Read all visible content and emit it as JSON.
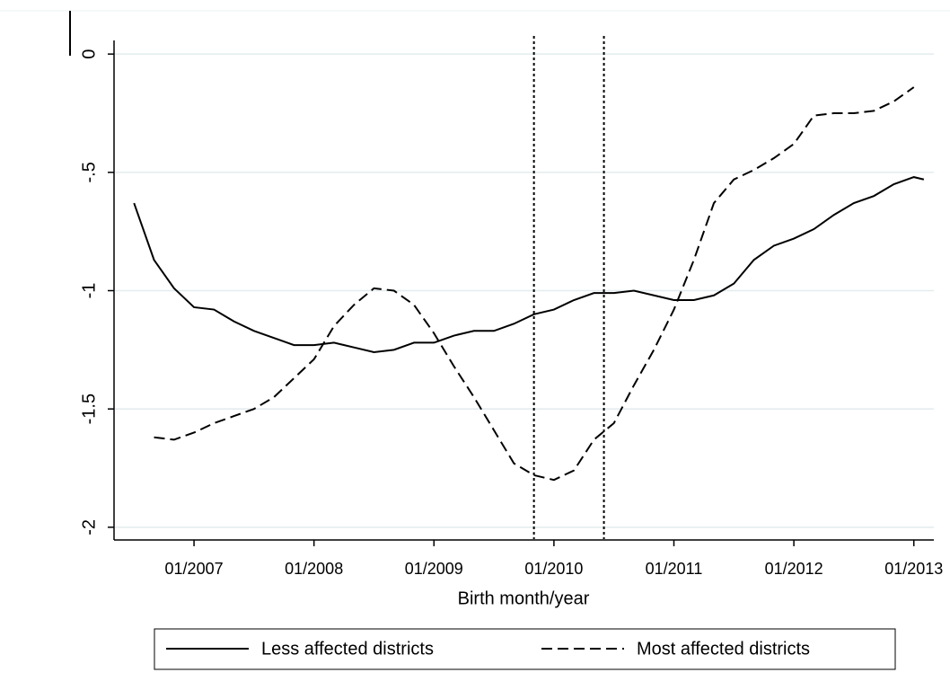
{
  "chart_data": {
    "type": "line",
    "x_label": "Birth month/year",
    "xlim": [
      "05/2006",
      "03/2013"
    ],
    "xticks": [
      "01/2007",
      "01/2008",
      "01/2009",
      "01/2010",
      "01/2011",
      "01/2012",
      "01/2013"
    ],
    "ylim": [
      -2.05,
      0.05
    ],
    "yticks": [
      0,
      {
        "value": -0.5,
        "label": "-.5"
      },
      -1,
      -1.5,
      -2
    ],
    "grid": true,
    "reference_lines": [
      "11/2009",
      "06/2010"
    ],
    "legend_position": "bottom",
    "series": [
      {
        "name": "Less affected districts",
        "color": "#000000",
        "dash": "solid",
        "x": [
          "07/2006",
          "09/2006",
          "11/2006",
          "01/2007",
          "03/2007",
          "05/2007",
          "07/2007",
          "09/2007",
          "11/2007",
          "01/2008",
          "03/2008",
          "05/2008",
          "07/2008",
          "09/2008",
          "11/2008",
          "01/2009",
          "03/2009",
          "05/2009",
          "07/2009",
          "09/2009",
          "11/2009",
          "01/2010",
          "03/2010",
          "05/2010",
          "07/2010",
          "09/2010",
          "11/2010",
          "01/2011",
          "03/2011",
          "05/2011",
          "07/2011",
          "09/2011",
          "11/2011",
          "01/2012",
          "03/2012",
          "05/2012",
          "07/2012",
          "09/2012",
          "11/2012",
          "01/2013",
          "02/2013"
        ],
        "values": [
          -0.63,
          -0.87,
          -0.99,
          -1.07,
          -1.08,
          -1.13,
          -1.17,
          -1.2,
          -1.23,
          -1.23,
          -1.22,
          -1.24,
          -1.26,
          -1.25,
          -1.22,
          -1.22,
          -1.19,
          -1.17,
          -1.17,
          -1.14,
          -1.1,
          -1.08,
          -1.04,
          -1.01,
          -1.01,
          -1.0,
          -1.02,
          -1.04,
          -1.04,
          -1.02,
          -0.97,
          -0.87,
          -0.81,
          -0.78,
          -0.74,
          -0.68,
          -0.63,
          -0.6,
          -0.55,
          -0.52,
          -0.53
        ]
      },
      {
        "name": "Most affected districts",
        "color": "#000000",
        "dash": "dashed",
        "x": [
          "09/2006",
          "11/2006",
          "01/2007",
          "03/2007",
          "05/2007",
          "07/2007",
          "09/2007",
          "11/2007",
          "01/2008",
          "03/2008",
          "05/2008",
          "07/2008",
          "09/2008",
          "11/2008",
          "01/2009",
          "03/2009",
          "05/2009",
          "07/2009",
          "09/2009",
          "11/2009",
          "01/2010",
          "03/2010",
          "05/2010",
          "07/2010",
          "09/2010",
          "11/2010",
          "01/2011",
          "03/2011",
          "05/2011",
          "07/2011",
          "09/2011",
          "11/2011",
          "01/2012",
          "03/2012",
          "05/2012",
          "07/2012",
          "09/2012",
          "11/2012",
          "01/2013"
        ],
        "values": [
          -1.62,
          -1.63,
          -1.6,
          -1.56,
          -1.53,
          -1.5,
          -1.45,
          -1.37,
          -1.29,
          -1.15,
          -1.06,
          -0.99,
          -1.0,
          -1.06,
          -1.18,
          -1.32,
          -1.45,
          -1.59,
          -1.73,
          -1.78,
          -1.8,
          -1.76,
          -1.63,
          -1.56,
          -1.4,
          -1.25,
          -1.08,
          -0.87,
          -0.63,
          -0.53,
          -0.49,
          -0.44,
          -0.38,
          -0.26,
          -0.25,
          -0.25,
          -0.24,
          -0.2,
          -0.14
        ]
      }
    ]
  }
}
